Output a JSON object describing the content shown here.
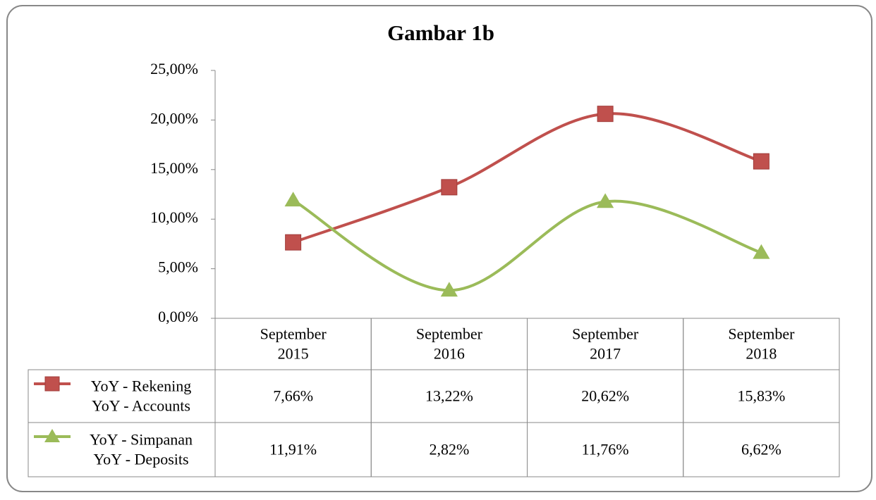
{
  "chart_data": {
    "type": "line",
    "title": "Gambar 1b",
    "categories": [
      "September 2015",
      "September 2016",
      "September 2017",
      "September 2018"
    ],
    "series": [
      {
        "name": "YoY - Rekening\nYoY - Accounts",
        "color": "#c0504d",
        "marker": "square",
        "values": [
          7.66,
          13.22,
          20.62,
          15.83
        ],
        "value_labels": [
          "7,66%",
          "13,22%",
          "20,62%",
          "15,83%"
        ]
      },
      {
        "name": "YoY - Simpanan\nYoY - Deposits",
        "color": "#9bbb59",
        "marker": "triangle",
        "values": [
          11.91,
          2.82,
          11.76,
          6.62
        ],
        "value_labels": [
          "11,91%",
          "2,82%",
          "11,76%",
          "6,62%"
        ]
      }
    ],
    "ylim": [
      0,
      25
    ],
    "yticks": [
      {
        "value": 0,
        "label": "0,00%"
      },
      {
        "value": 5,
        "label": "5,00%"
      },
      {
        "value": 10,
        "label": "10,00%"
      },
      {
        "value": 15,
        "label": "15,00%"
      },
      {
        "value": 20,
        "label": "20,00%"
      },
      {
        "value": 25,
        "label": "25,00%"
      }
    ],
    "smooth": true,
    "data_table": true
  }
}
